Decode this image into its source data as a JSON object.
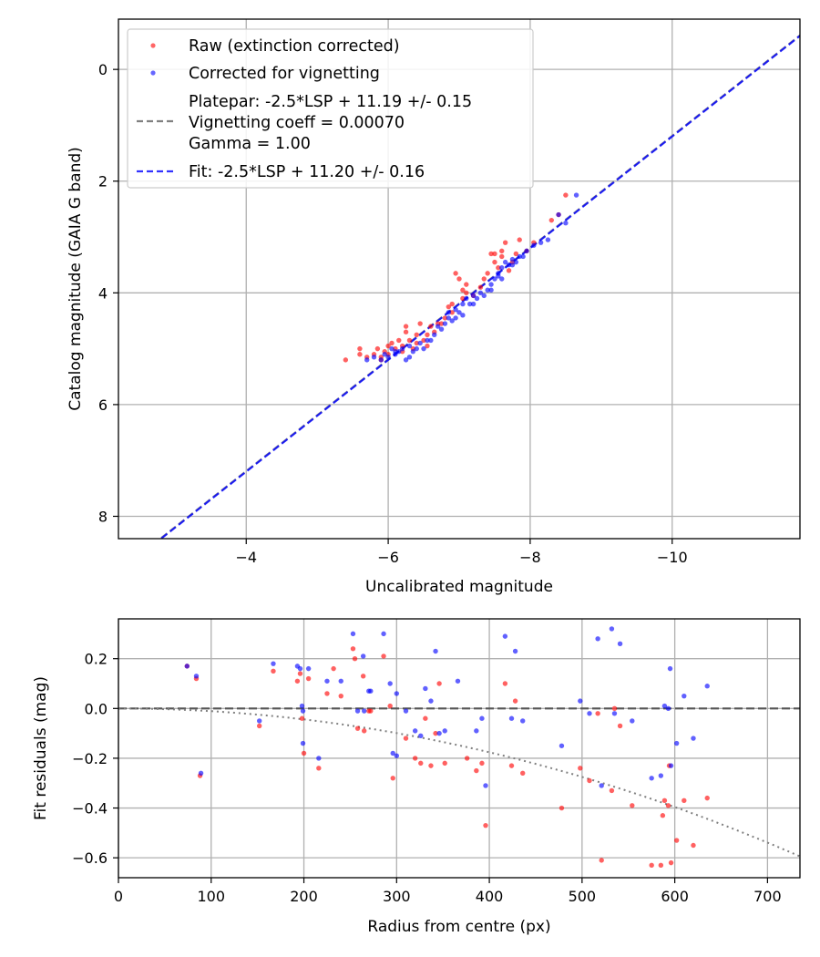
{
  "chart_data": [
    {
      "type": "scatter",
      "title": "",
      "xlabel": "Uncalibrated magnitude",
      "ylabel": "Catalog magnitude (GAIA G band)",
      "xlim": [
        -2.2,
        -11.8
      ],
      "ylim": [
        8.4,
        -0.9
      ],
      "x_ticks": [
        -4,
        -6,
        -8,
        -10
      ],
      "x_tick_labels": [
        "−4",
        "−6",
        "−8",
        "−10"
      ],
      "y_ticks": [
        0,
        2,
        4,
        6,
        8
      ],
      "y_tick_labels": [
        "0",
        "2",
        "4",
        "6",
        "8"
      ],
      "grid": true,
      "legend_position": "top-left",
      "legend": {
        "raw_label": "Raw (extinction corrected)",
        "corrected_label": "Corrected for vignetting",
        "platepar_lines": [
          "Platepar: -2.5*LSP + 11.19 +/- 0.15",
          "Vignetting coeff = 0.00070",
          "Gamma = 1.00"
        ],
        "fit_label": "Fit: -2.5*LSP + 11.20 +/- 0.16"
      },
      "series": [
        {
          "name": "Raw (extinction corrected)",
          "color": "#ff0000",
          "points": [
            [
              -5.4,
              5.2
            ],
            [
              -5.6,
              5.0
            ],
            [
              -5.6,
              5.1
            ],
            [
              -5.7,
              5.15
            ],
            [
              -5.8,
              5.1
            ],
            [
              -5.85,
              5.0
            ],
            [
              -5.9,
              5.2
            ],
            [
              -5.95,
              5.05
            ],
            [
              -6.0,
              4.95
            ],
            [
              -6.0,
              5.1
            ],
            [
              -6.05,
              4.9
            ],
            [
              -6.1,
              5.0
            ],
            [
              -6.15,
              4.85
            ],
            [
              -6.2,
              4.95
            ],
            [
              -6.2,
              5.05
            ],
            [
              -6.25,
              4.6
            ],
            [
              -6.25,
              4.7
            ],
            [
              -6.3,
              4.85
            ],
            [
              -6.35,
              5.0
            ],
            [
              -6.4,
              4.9
            ],
            [
              -6.4,
              4.75
            ],
            [
              -6.45,
              4.55
            ],
            [
              -6.5,
              4.85
            ],
            [
              -6.55,
              4.75
            ],
            [
              -6.6,
              4.6
            ],
            [
              -6.65,
              4.7
            ],
            [
              -6.7,
              4.55
            ],
            [
              -6.8,
              4.45
            ],
            [
              -6.85,
              4.25
            ],
            [
              -6.9,
              4.35
            ],
            [
              -6.9,
              4.2
            ],
            [
              -6.95,
              3.65
            ],
            [
              -7.0,
              3.75
            ],
            [
              -7.05,
              4.1
            ],
            [
              -7.1,
              4.0
            ],
            [
              -7.1,
              3.85
            ],
            [
              -7.2,
              4.05
            ],
            [
              -7.3,
              3.9
            ],
            [
              -7.35,
              3.75
            ],
            [
              -7.4,
              3.65
            ],
            [
              -7.45,
              3.3
            ],
            [
              -7.5,
              3.45
            ],
            [
              -7.55,
              3.55
            ],
            [
              -7.6,
              3.35
            ],
            [
              -7.6,
              3.25
            ],
            [
              -7.65,
              3.1
            ],
            [
              -7.7,
              3.6
            ],
            [
              -7.75,
              3.45
            ],
            [
              -7.8,
              3.3
            ],
            [
              -7.85,
              3.05
            ],
            [
              -7.95,
              3.25
            ],
            [
              -8.05,
              3.1
            ],
            [
              -8.3,
              2.7
            ],
            [
              -8.5,
              2.25
            ],
            [
              -8.4,
              2.6
            ],
            [
              -6.55,
              4.95
            ],
            [
              -5.9,
              5.15
            ],
            [
              -7.05,
              3.95
            ],
            [
              -7.5,
              3.3
            ],
            [
              -6.75,
              4.55
            ]
          ]
        },
        {
          "name": "Corrected for vignetting",
          "color": "#0000ff",
          "points": [
            [
              -5.7,
              5.2
            ],
            [
              -5.8,
              5.15
            ],
            [
              -5.9,
              5.2
            ],
            [
              -5.95,
              5.1
            ],
            [
              -6.0,
              5.15
            ],
            [
              -6.05,
              5.0
            ],
            [
              -6.1,
              5.1
            ],
            [
              -6.15,
              5.05
            ],
            [
              -6.2,
              5.0
            ],
            [
              -6.25,
              5.2
            ],
            [
              -6.3,
              5.15
            ],
            [
              -6.35,
              5.05
            ],
            [
              -6.4,
              5.0
            ],
            [
              -6.45,
              4.9
            ],
            [
              -6.5,
              5.0
            ],
            [
              -6.55,
              4.85
            ],
            [
              -6.6,
              4.85
            ],
            [
              -6.65,
              4.75
            ],
            [
              -6.7,
              4.6
            ],
            [
              -6.75,
              4.65
            ],
            [
              -6.8,
              4.55
            ],
            [
              -6.85,
              4.45
            ],
            [
              -6.9,
              4.5
            ],
            [
              -6.95,
              4.3
            ],
            [
              -7.0,
              4.35
            ],
            [
              -7.05,
              4.4
            ],
            [
              -7.05,
              4.2
            ],
            [
              -7.1,
              4.1
            ],
            [
              -7.15,
              4.2
            ],
            [
              -7.2,
              4.05
            ],
            [
              -7.25,
              4.1
            ],
            [
              -7.3,
              4.0
            ],
            [
              -7.35,
              4.05
            ],
            [
              -7.4,
              3.95
            ],
            [
              -7.45,
              3.85
            ],
            [
              -7.5,
              3.75
            ],
            [
              -7.55,
              3.65
            ],
            [
              -7.6,
              3.75
            ],
            [
              -7.6,
              3.55
            ],
            [
              -7.65,
              3.45
            ],
            [
              -7.7,
              3.5
            ],
            [
              -7.75,
              3.5
            ],
            [
              -7.8,
              3.45
            ],
            [
              -7.85,
              3.35
            ],
            [
              -7.9,
              3.35
            ],
            [
              -7.95,
              3.25
            ],
            [
              -8.05,
              3.15
            ],
            [
              -8.15,
              3.1
            ],
            [
              -8.25,
              3.05
            ],
            [
              -8.4,
              2.6
            ],
            [
              -8.5,
              2.75
            ],
            [
              -8.65,
              2.25
            ],
            [
              -7.55,
              3.7
            ],
            [
              -7.75,
              3.4
            ],
            [
              -6.95,
              4.45
            ],
            [
              -6.1,
              5.05
            ],
            [
              -6.3,
              4.95
            ],
            [
              -7.2,
              4.2
            ],
            [
              -7.45,
              3.95
            ],
            [
              -6.85,
              4.35
            ]
          ]
        }
      ],
      "lines": [
        {
          "name": "Platepar",
          "slope_per_mag": -1,
          "intercept": 11.19,
          "color": "#808080",
          "style": "dashed"
        },
        {
          "name": "Fit",
          "slope_per_mag": -1,
          "intercept": 11.2,
          "color": "#0000ff",
          "style": "dashed"
        }
      ]
    },
    {
      "type": "scatter",
      "title": "",
      "xlabel": "Radius from centre (px)",
      "ylabel": "Fit residuals (mag)",
      "xlim": [
        0,
        735
      ],
      "ylim": [
        -0.68,
        0.36
      ],
      "x_ticks": [
        0,
        100,
        200,
        300,
        400,
        500,
        600,
        700
      ],
      "x_tick_labels": [
        "0",
        "100",
        "200",
        "300",
        "400",
        "500",
        "600",
        "700"
      ],
      "y_ticks": [
        0.2,
        0.0,
        -0.2,
        -0.4,
        -0.6
      ],
      "y_tick_labels": [
        "0.2",
        "0.0",
        "−0.2",
        "−0.4",
        "−0.6"
      ],
      "grid": true,
      "series": [
        {
          "name": "Raw (extinction corrected)",
          "color": "#ff0000",
          "points": [
            [
              74,
              0.17
            ],
            [
              84,
              0.12
            ],
            [
              88,
              -0.27
            ],
            [
              152,
              -0.07
            ],
            [
              167,
              0.15
            ],
            [
              193,
              0.11
            ],
            [
              196,
              0.14
            ],
            [
              198,
              -0.04
            ],
            [
              200,
              -0.18
            ],
            [
              205,
              0.12
            ],
            [
              216,
              -0.24
            ],
            [
              225,
              0.06
            ],
            [
              232,
              0.16
            ],
            [
              240,
              0.05
            ],
            [
              253,
              0.24
            ],
            [
              255,
              0.2
            ],
            [
              258,
              -0.08
            ],
            [
              264,
              0.13
            ],
            [
              265,
              -0.09
            ],
            [
              272,
              -0.01
            ],
            [
              286,
              0.21
            ],
            [
              293,
              0.01
            ],
            [
              296,
              -0.28
            ],
            [
              310,
              -0.12
            ],
            [
              320,
              -0.2
            ],
            [
              326,
              -0.22
            ],
            [
              331,
              -0.04
            ],
            [
              337,
              -0.23
            ],
            [
              342,
              -0.1
            ],
            [
              346,
              0.1
            ],
            [
              352,
              -0.22
            ],
            [
              386,
              -0.25
            ],
            [
              392,
              -0.22
            ],
            [
              396,
              -0.47
            ],
            [
              417,
              0.1
            ],
            [
              424,
              -0.23
            ],
            [
              428,
              0.03
            ],
            [
              436,
              -0.26
            ],
            [
              478,
              -0.4
            ],
            [
              498,
              -0.24
            ],
            [
              508,
              -0.29
            ],
            [
              517,
              -0.02
            ],
            [
              521,
              -0.61
            ],
            [
              532,
              -0.33
            ],
            [
              535,
              0.0
            ],
            [
              541,
              -0.07
            ],
            [
              554,
              -0.39
            ],
            [
              575,
              -0.63
            ],
            [
              585,
              -0.63
            ],
            [
              587,
              -0.43
            ],
            [
              589,
              -0.37
            ],
            [
              593,
              -0.39
            ],
            [
              596,
              -0.62
            ],
            [
              602,
              -0.53
            ],
            [
              610,
              -0.37
            ],
            [
              620,
              -0.55
            ],
            [
              635,
              -0.36
            ],
            [
              594,
              -0.23
            ],
            [
              270,
              -0.01
            ],
            [
              376,
              -0.2
            ]
          ]
        },
        {
          "name": "Corrected for vignetting",
          "color": "#0000ff",
          "points": [
            [
              74,
              0.17
            ],
            [
              84,
              0.13
            ],
            [
              89,
              -0.26
            ],
            [
              152,
              -0.05
            ],
            [
              167,
              0.18
            ],
            [
              193,
              0.17
            ],
            [
              196,
              0.16
            ],
            [
              198,
              0.01
            ],
            [
              199,
              -0.14
            ],
            [
              205,
              0.16
            ],
            [
              216,
              -0.2
            ],
            [
              225,
              0.11
            ],
            [
              240,
              0.11
            ],
            [
              253,
              0.3
            ],
            [
              258,
              -0.01
            ],
            [
              264,
              0.21
            ],
            [
              265,
              -0.01
            ],
            [
              272,
              0.07
            ],
            [
              286,
              0.3
            ],
            [
              293,
              0.1
            ],
            [
              296,
              -0.18
            ],
            [
              300,
              0.06
            ],
            [
              310,
              -0.01
            ],
            [
              320,
              -0.09
            ],
            [
              326,
              -0.11
            ],
            [
              331,
              0.08
            ],
            [
              337,
              0.03
            ],
            [
              342,
              0.23
            ],
            [
              352,
              -0.09
            ],
            [
              366,
              0.11
            ],
            [
              386,
              -0.09
            ],
            [
              392,
              -0.04
            ],
            [
              396,
              -0.31
            ],
            [
              417,
              0.29
            ],
            [
              424,
              -0.04
            ],
            [
              428,
              0.23
            ],
            [
              436,
              -0.05
            ],
            [
              478,
              -0.15
            ],
            [
              498,
              0.03
            ],
            [
              508,
              -0.02
            ],
            [
              517,
              0.28
            ],
            [
              521,
              -0.31
            ],
            [
              532,
              0.32
            ],
            [
              535,
              -0.02
            ],
            [
              541,
              0.26
            ],
            [
              554,
              -0.05
            ],
            [
              575,
              -0.28
            ],
            [
              585,
              -0.27
            ],
            [
              589,
              0.01
            ],
            [
              593,
              0.0
            ],
            [
              595,
              0.16
            ],
            [
              596,
              -0.23
            ],
            [
              602,
              -0.14
            ],
            [
              610,
              0.05
            ],
            [
              620,
              -0.12
            ],
            [
              635,
              0.09
            ],
            [
              199,
              -0.01
            ],
            [
              270,
              0.07
            ],
            [
              346,
              -0.1
            ],
            [
              300,
              -0.19
            ]
          ]
        }
      ],
      "lines": [
        {
          "name": "zero",
          "color": "#555555",
          "style": "dashed"
        },
        {
          "name": "vignetting_curve",
          "coeff": 0.0007,
          "color": "#808080",
          "style": "dotted"
        }
      ]
    }
  ]
}
